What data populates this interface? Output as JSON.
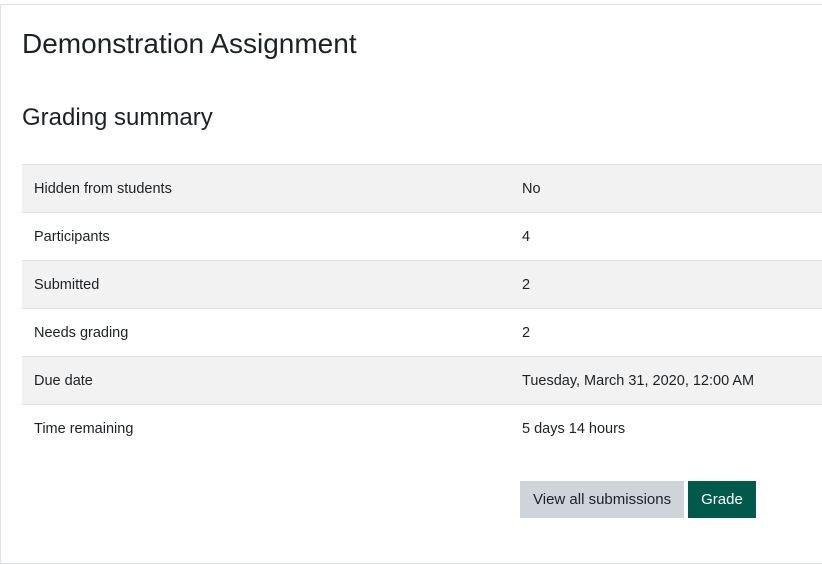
{
  "page": {
    "title": "Demonstration Assignment",
    "section_title": "Grading summary"
  },
  "summary": [
    {
      "label": "Hidden from students",
      "value": "No"
    },
    {
      "label": "Participants",
      "value": "4"
    },
    {
      "label": "Submitted",
      "value": "2"
    },
    {
      "label": "Needs grading",
      "value": "2"
    },
    {
      "label": "Due date",
      "value": "Tuesday, March 31, 2020, 12:00 AM"
    },
    {
      "label": "Time remaining",
      "value": "5 days 14 hours"
    }
  ],
  "actions": {
    "view_all": "View all submissions",
    "grade": "Grade"
  },
  "colors": {
    "primary": "#005a4b",
    "secondary": "#ced4da",
    "stripe": "#f2f2f2"
  }
}
